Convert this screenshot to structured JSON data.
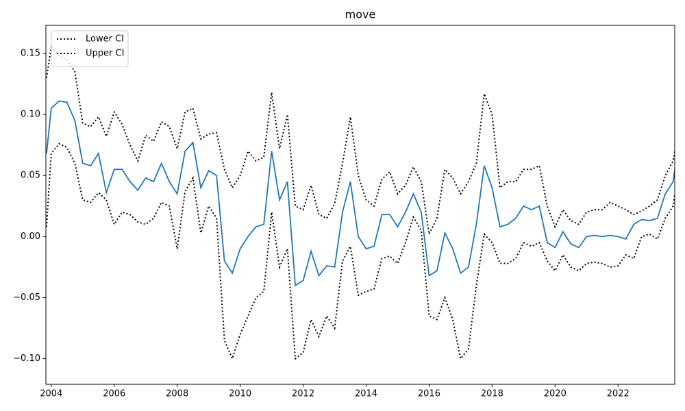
{
  "chart_data": {
    "type": "line",
    "title": "move",
    "x": [
      2003.85,
      2004,
      2004.25,
      2004.5,
      2004.75,
      2005,
      2005.25,
      2005.5,
      2005.75,
      2006,
      2006.25,
      2006.5,
      2006.75,
      2007,
      2007.25,
      2007.5,
      2007.75,
      2008,
      2008.25,
      2008.5,
      2008.75,
      2009,
      2009.25,
      2009.5,
      2009.75,
      2010,
      2010.25,
      2010.5,
      2010.75,
      2011,
      2011.25,
      2011.5,
      2011.75,
      2012,
      2012.25,
      2012.5,
      2012.75,
      2013,
      2013.25,
      2013.5,
      2013.75,
      2014,
      2014.25,
      2014.5,
      2014.75,
      2015,
      2015.25,
      2015.5,
      2015.75,
      2016,
      2016.25,
      2016.5,
      2016.75,
      2017,
      2017.25,
      2017.5,
      2017.75,
      2018,
      2018.25,
      2018.5,
      2018.75,
      2019,
      2019.25,
      2019.5,
      2019.75,
      2020,
      2020.25,
      2020.5,
      2020.75,
      2021,
      2021.25,
      2021.5,
      2021.75,
      2022,
      2022.25,
      2022.5,
      2022.75,
      2023,
      2023.25,
      2023.5,
      2023.75,
      2023.8
    ],
    "series": [
      {
        "color": "#1f77b4",
        "style": "solid",
        "values": [
          0.068,
          0.105,
          0.111,
          0.11,
          0.095,
          0.06,
          0.058,
          0.068,
          0.036,
          0.055,
          0.055,
          0.045,
          0.038,
          0.048,
          0.045,
          0.06,
          0.045,
          0.035,
          0.07,
          0.077,
          0.04,
          0.054,
          0.05,
          -0.02,
          -0.03,
          -0.01,
          0.0,
          0.008,
          0.01,
          0.07,
          0.03,
          0.045,
          -0.04,
          -0.036,
          -0.012,
          -0.032,
          -0.024,
          -0.025,
          0.02,
          0.045,
          0.0,
          -0.01,
          -0.008,
          0.018,
          0.018,
          0.008,
          0.02,
          0.035,
          0.02,
          -0.032,
          -0.028,
          0.003,
          -0.01,
          -0.03,
          -0.025,
          0.01,
          0.058,
          0.04,
          0.008,
          0.01,
          0.015,
          0.025,
          0.022,
          0.025,
          -0.005,
          -0.009,
          0.004,
          -0.006,
          -0.009,
          0.0,
          0.001,
          0.0,
          0.001,
          0.0,
          -0.002,
          0.01,
          0.014,
          0.013,
          0.015,
          0.035,
          0.045,
          0.055
        ]
      },
      {
        "name": "Lower CI",
        "color": "#000000",
        "style": "dotted",
        "values": [
          0.008,
          0.068,
          0.076,
          0.073,
          0.06,
          0.03,
          0.028,
          0.036,
          0.03,
          0.01,
          0.02,
          0.018,
          0.012,
          0.01,
          0.015,
          0.028,
          0.025,
          -0.01,
          0.037,
          0.048,
          0.003,
          0.025,
          0.015,
          -0.085,
          -0.1,
          -0.08,
          -0.065,
          -0.05,
          -0.045,
          0.02,
          -0.025,
          -0.01,
          -0.1,
          -0.095,
          -0.068,
          -0.082,
          -0.065,
          -0.075,
          -0.02,
          -0.008,
          -0.048,
          -0.045,
          -0.043,
          -0.018,
          -0.016,
          -0.022,
          -0.005,
          0.016,
          0.005,
          -0.065,
          -0.068,
          -0.05,
          -0.068,
          -0.1,
          -0.092,
          -0.04,
          0.002,
          -0.005,
          -0.022,
          -0.022,
          -0.018,
          -0.005,
          -0.008,
          -0.005,
          -0.02,
          -0.028,
          -0.015,
          -0.025,
          -0.028,
          -0.022,
          -0.021,
          -0.022,
          -0.025,
          -0.024,
          -0.015,
          -0.018,
          0.0,
          0.002,
          -0.002,
          0.015,
          0.025,
          0.035
        ]
      },
      {
        "name": "Upper CI",
        "color": "#000000",
        "style": "dotted",
        "values": [
          0.13,
          0.155,
          0.148,
          0.145,
          0.135,
          0.093,
          0.09,
          0.098,
          0.082,
          0.102,
          0.092,
          0.075,
          0.062,
          0.083,
          0.078,
          0.094,
          0.09,
          0.072,
          0.102,
          0.105,
          0.08,
          0.084,
          0.085,
          0.055,
          0.04,
          0.05,
          0.07,
          0.062,
          0.065,
          0.118,
          0.072,
          0.1,
          0.025,
          0.022,
          0.042,
          0.018,
          0.015,
          0.027,
          0.06,
          0.098,
          0.05,
          0.03,
          0.025,
          0.047,
          0.053,
          0.035,
          0.042,
          0.057,
          0.045,
          0.002,
          0.015,
          0.055,
          0.048,
          0.035,
          0.045,
          0.06,
          0.117,
          0.1,
          0.04,
          0.045,
          0.045,
          0.055,
          0.055,
          0.058,
          0.025,
          0.008,
          0.022,
          0.013,
          0.01,
          0.02,
          0.022,
          0.022,
          0.028,
          0.025,
          0.022,
          0.018,
          0.021,
          0.025,
          0.03,
          0.05,
          0.062,
          0.07
        ]
      }
    ],
    "xlim": [
      2003.83,
      2023.8
    ],
    "xticks": [
      2004,
      2006,
      2008,
      2010,
      2012,
      2014,
      2016,
      2018,
      2020,
      2022
    ],
    "ylim": [
      -0.121,
      0.173
    ],
    "yticks": [
      {
        "value": -0.1,
        "label": "−0.10"
      },
      {
        "value": -0.05,
        "label": "−0.05"
      },
      {
        "value": 0,
        "label": "0.00"
      },
      0.05,
      {
        "value": 0.1,
        "label": "0.10"
      },
      0.15
    ],
    "grid": false,
    "legend": "upper-left"
  }
}
